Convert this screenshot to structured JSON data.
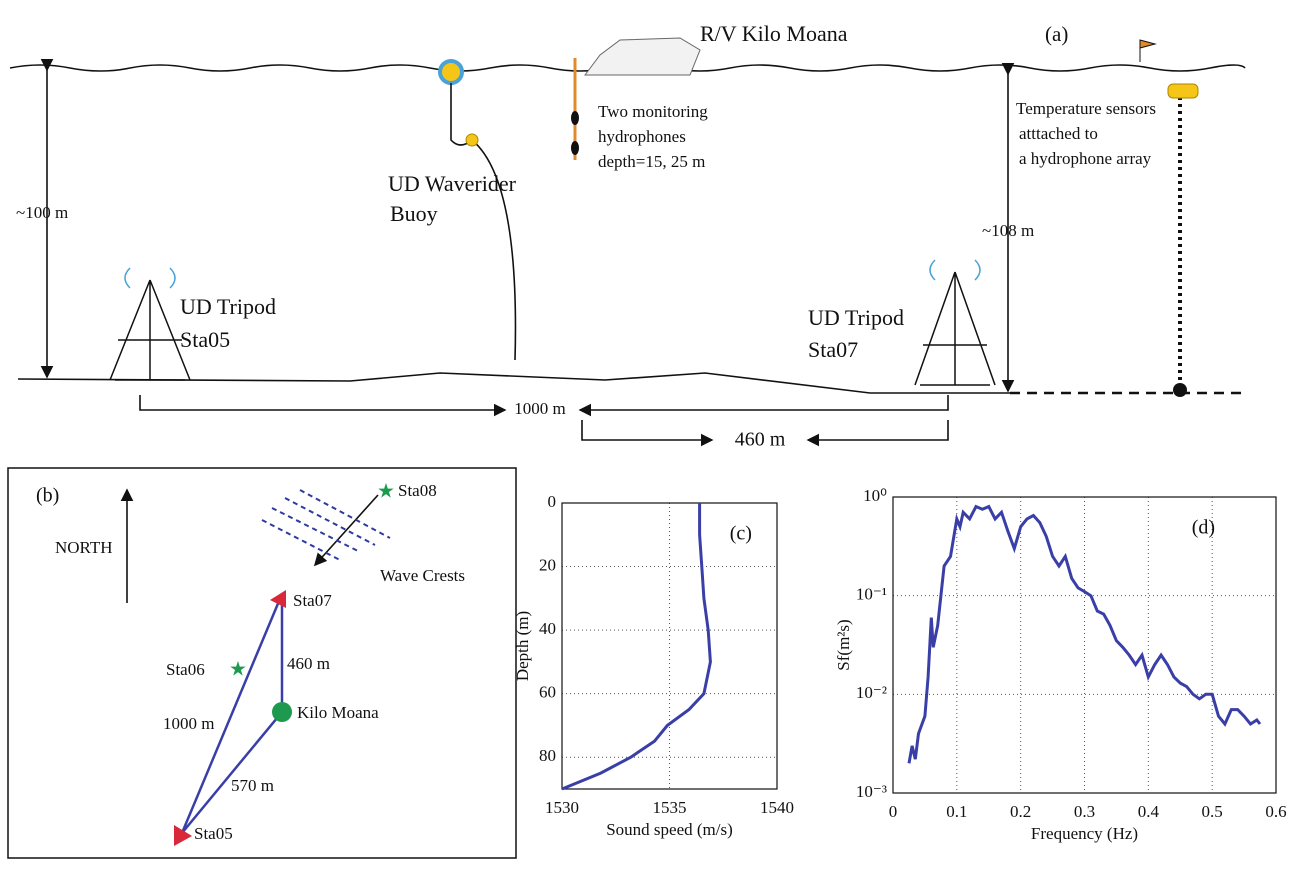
{
  "panel_a": {
    "label": "(a)",
    "ship": "R/V Kilo Moana",
    "hydrophones": [
      "Two monitoring",
      "hydrophones",
      "depth=15, 25 m"
    ],
    "buoy": [
      "UD Waverider",
      "Buoy"
    ],
    "depth_left": "~100 m",
    "depth_right": "~108 m",
    "sensors": [
      "Temperature sensors",
      "atttached to",
      "a hydrophone array"
    ],
    "tripod_left": [
      "UD Tripod",
      "Sta05"
    ],
    "tripod_right": [
      "UD Tripod",
      "Sta07"
    ],
    "dist_long": "1000 m",
    "dist_short": "460 m"
  },
  "panel_b": {
    "label": "(b)",
    "north": "NORTH",
    "sta08": "Sta08",
    "wave_crests": "Wave Crests",
    "sta07": "Sta07",
    "sta06": "Sta06",
    "d460": "460 m",
    "kilo_moana": "Kilo Moana",
    "d1000": "1000 m",
    "d570": "570 m",
    "sta05": "Sta05"
  },
  "chart_data": [
    {
      "type": "line",
      "title": "(c)",
      "x_label": "Sound speed (m/s)",
      "y_label": "Depth (m)",
      "color": "#3a3fa8",
      "grid": true,
      "y_reversed": true,
      "x": [
        1536.4,
        1536.4,
        1536.5,
        1536.6,
        1536.8,
        1536.9,
        1536.6,
        1535.9,
        1534.9,
        1534.3,
        1533.2,
        1531.8,
        1530.0
      ],
      "values": [
        0,
        10,
        20,
        30,
        40,
        50,
        60,
        65,
        70,
        75,
        80,
        85,
        90
      ],
      "xlim": [
        1530,
        1540
      ],
      "xticks": [
        1530,
        1535,
        1540
      ],
      "ylim": [
        0,
        90
      ],
      "yticks": [
        0,
        20,
        40,
        60,
        80
      ]
    },
    {
      "type": "line",
      "title": "(d)",
      "x_label": "Frequency (Hz)",
      "y_label": "Sf(m²s)",
      "color": "#3a3fa8",
      "grid": true,
      "log_y": true,
      "x": [
        0.025,
        0.03,
        0.035,
        0.04,
        0.05,
        0.055,
        0.06,
        0.063,
        0.07,
        0.075,
        0.08,
        0.09,
        0.1,
        0.105,
        0.11,
        0.12,
        0.13,
        0.14,
        0.15,
        0.16,
        0.17,
        0.18,
        0.19,
        0.2,
        0.21,
        0.22,
        0.23,
        0.24,
        0.25,
        0.26,
        0.27,
        0.28,
        0.29,
        0.3,
        0.31,
        0.32,
        0.33,
        0.34,
        0.35,
        0.36,
        0.37,
        0.38,
        0.39,
        0.4,
        0.41,
        0.42,
        0.43,
        0.44,
        0.45,
        0.46,
        0.47,
        0.48,
        0.49,
        0.5,
        0.51,
        0.52,
        0.53,
        0.54,
        0.55,
        0.56,
        0.57,
        0.575
      ],
      "values": [
        0.002,
        0.003,
        0.0022,
        0.004,
        0.006,
        0.015,
        0.06,
        0.03,
        0.05,
        0.1,
        0.2,
        0.25,
        0.6,
        0.5,
        0.7,
        0.6,
        0.8,
        0.75,
        0.8,
        0.6,
        0.7,
        0.45,
        0.3,
        0.5,
        0.6,
        0.65,
        0.55,
        0.4,
        0.25,
        0.2,
        0.25,
        0.15,
        0.12,
        0.11,
        0.1,
        0.07,
        0.065,
        0.05,
        0.035,
        0.03,
        0.025,
        0.02,
        0.025,
        0.015,
        0.02,
        0.025,
        0.02,
        0.015,
        0.013,
        0.012,
        0.01,
        0.009,
        0.01,
        0.01,
        0.006,
        0.005,
        0.007,
        0.007,
        0.006,
        0.005,
        0.0055,
        0.005
      ],
      "xlim": [
        0,
        0.6
      ],
      "xticks": [
        0,
        0.1,
        0.2,
        0.3,
        0.4,
        0.5,
        0.6
      ],
      "ylim": [
        0.001,
        1
      ],
      "yticks": [
        {
          "value": 0.001,
          "label": "10⁻³"
        },
        {
          "value": 0.01,
          "label": "10⁻²"
        },
        {
          "value": 0.1,
          "label": "10⁻¹"
        },
        {
          "value": 1,
          "label": "10⁰"
        }
      ]
    }
  ]
}
